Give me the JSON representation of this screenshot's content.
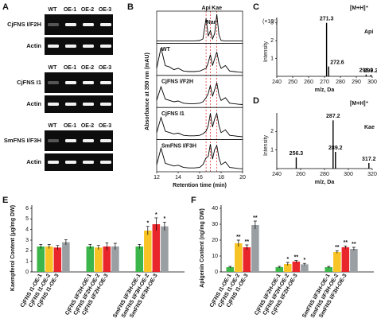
{
  "panel_labels": [
    "A",
    "B",
    "C",
    "D",
    "E",
    "F"
  ],
  "gel": {
    "lanes": [
      "WT",
      "OE-1",
      "OE-2",
      "OE-3"
    ],
    "blocks": [
      {
        "gene": "CjFNS I/F2H",
        "control": "Actin"
      },
      {
        "gene": "CjFNS I1",
        "control": "Actin"
      },
      {
        "gene": "SmFNS I/F3H",
        "control": "Actin"
      }
    ]
  },
  "chart_data": [
    {
      "type": "chromatogram",
      "xlabel": "Retention time (min)",
      "ylabel": "Absorbance at 350 nm (mAU)",
      "xlim": [
        12,
        20
      ],
      "xticks": [
        12,
        14,
        16,
        18,
        20
      ],
      "ylim": [
        0,
        100
      ],
      "x": [
        12,
        12.4,
        12.8,
        13.2,
        13.6,
        14,
        14.5,
        15,
        15.5,
        16,
        16.3,
        16.6,
        16.8,
        17.0,
        17.2,
        17.4,
        17.6,
        17.8,
        18.0,
        18.4,
        18.8,
        19.2,
        19.6,
        20
      ],
      "reference_lines": [
        16.6,
        17.0,
        17.6
      ],
      "peak_labels": [
        {
          "text": "Api",
          "x": 16.6
        },
        {
          "text": "Nar",
          "x": 17.0
        },
        {
          "text": "Kae",
          "x": 17.6
        }
      ],
      "traces": [
        {
          "values": [
            3,
            3,
            3,
            3,
            3,
            3,
            3,
            3,
            3,
            4,
            10,
            85,
            20,
            40,
            10,
            30,
            100,
            25,
            4,
            3,
            3,
            3,
            3,
            3
          ]
        },
        {
          "label": "WT",
          "values": [
            20,
            95,
            30,
            25,
            15,
            20,
            10,
            8,
            8,
            10,
            15,
            20,
            40,
            70,
            30,
            55,
            80,
            40,
            20,
            30,
            10,
            8,
            6,
            5
          ]
        },
        {
          "label": "CjFNS I/F2H",
          "values": [
            20,
            70,
            25,
            20,
            15,
            18,
            10,
            8,
            8,
            10,
            15,
            30,
            45,
            75,
            35,
            60,
            85,
            40,
            20,
            30,
            10,
            8,
            6,
            5
          ]
        },
        {
          "label": "CjFNS I1",
          "values": [
            20,
            75,
            25,
            20,
            15,
            18,
            10,
            8,
            8,
            10,
            15,
            25,
            45,
            90,
            40,
            70,
            90,
            45,
            20,
            30,
            10,
            8,
            6,
            5
          ]
        },
        {
          "label": "SmFNS I/F3H",
          "values": [
            20,
            80,
            25,
            20,
            15,
            18,
            10,
            8,
            8,
            10,
            20,
            45,
            50,
            95,
            40,
            75,
            90,
            45,
            20,
            30,
            10,
            8,
            6,
            5
          ]
        }
      ]
    },
    {
      "type": "spectrum",
      "xlabel": "m/z, Da",
      "ylabel": "Intensity",
      "multiplier": "(×10⁷)",
      "annotation": "[M+H]⁺",
      "compound": "Api",
      "xlim": [
        240,
        300
      ],
      "xticks": [
        240,
        250,
        260,
        270,
        280,
        290,
        300
      ],
      "ylim": [
        0,
        3.3
      ],
      "yticks": [
        1,
        2,
        3
      ],
      "x": [
        271.3,
        272.6,
        296.2,
        299.2
      ],
      "values": [
        3.0,
        0.55,
        0.1,
        0.08
      ]
    },
    {
      "type": "spectrum",
      "xlabel": "m/z, Da",
      "ylabel": "Intensity",
      "annotation": "[M+H]⁺",
      "compound": "Kae",
      "xlim": [
        240,
        320
      ],
      "xticks": [
        240,
        260,
        280,
        300,
        320
      ],
      "ylim": [
        0,
        3
      ],
      "yticks": [
        1,
        2
      ],
      "x": [
        256.3,
        287.2,
        289.2,
        317.2
      ],
      "values": [
        0.6,
        2.6,
        0.9,
        0.3
      ]
    },
    {
      "type": "bar",
      "ylabel": "Kaempferol Content (μg/mg DW)",
      "ylim": [
        0,
        6
      ],
      "yticks": [
        0,
        1,
        2,
        3,
        4,
        5,
        6
      ],
      "categories": [
        null,
        "CjFNS I1-OE-1",
        "CjFNS I1-OE-2",
        "CjFNS I1-OE-3",
        null,
        "CjFNS I/F2H-OE-1",
        "CjFNS I/F2H-OE-2",
        "CjFNS I/F2H-OE-3",
        null,
        "SmFNS I/F3H-OE-1",
        "SmFNS I/F3H-OE-2",
        "SmFNS I/F3H-OE-3"
      ],
      "values": [
        2.4,
        2.4,
        2.3,
        2.8,
        2.4,
        2.3,
        2.4,
        2.4,
        2.4,
        3.9,
        4.5,
        4.3
      ],
      "errors": [
        0.2,
        0.2,
        0.2,
        0.25,
        0.2,
        0.2,
        0.35,
        0.3,
        0.2,
        0.4,
        0.6,
        0.4
      ],
      "significance": [
        null,
        null,
        null,
        null,
        null,
        null,
        null,
        null,
        null,
        "*",
        "*",
        "*"
      ],
      "colors": [
        "#3cb54a",
        "#f7c325",
        "#e8262b",
        "#9a9fa3",
        "#3cb54a",
        "#f7c325",
        "#e8262b",
        "#9a9fa3",
        "#3cb54a",
        "#f7c325",
        "#e8262b",
        "#9a9fa3"
      ]
    },
    {
      "type": "bar",
      "ylabel": "Apigenin Content (ng/mg DW)",
      "ylim": [
        0,
        40
      ],
      "yticks": [
        0,
        10,
        20,
        30,
        40
      ],
      "categories": [
        null,
        "CjFNS I1-OE-1",
        "CjFNS I1-OE-2",
        "CjFNS I1-OE-3",
        null,
        "CjFNS I/F2H-OE-1",
        "CjFNS I/F2H-OE-2",
        "CjFNS I/F2H-OE-3",
        null,
        "SmFNS I/F3H-OE-1",
        "SmFNS I/F3H-OE-2",
        "SmFNS I/F3H-OE-3"
      ],
      "values": [
        3,
        18,
        15.5,
        29.5,
        3,
        5,
        6.5,
        4.8,
        3,
        12.5,
        15.5,
        14.5
      ],
      "errors": [
        0.5,
        2,
        1.5,
        2.5,
        0.5,
        1,
        0.7,
        0.6,
        0.5,
        0.8,
        0.8,
        1
      ],
      "significance": [
        null,
        "**",
        "**",
        "**",
        null,
        "*",
        "**",
        "*",
        null,
        "**",
        "**",
        "**"
      ],
      "colors": [
        "#3cb54a",
        "#f7c325",
        "#e8262b",
        "#9a9fa3",
        "#3cb54a",
        "#f7c325",
        "#e8262b",
        "#9a9fa3",
        "#3cb54a",
        "#f7c325",
        "#e8262b",
        "#9a9fa3"
      ]
    }
  ]
}
